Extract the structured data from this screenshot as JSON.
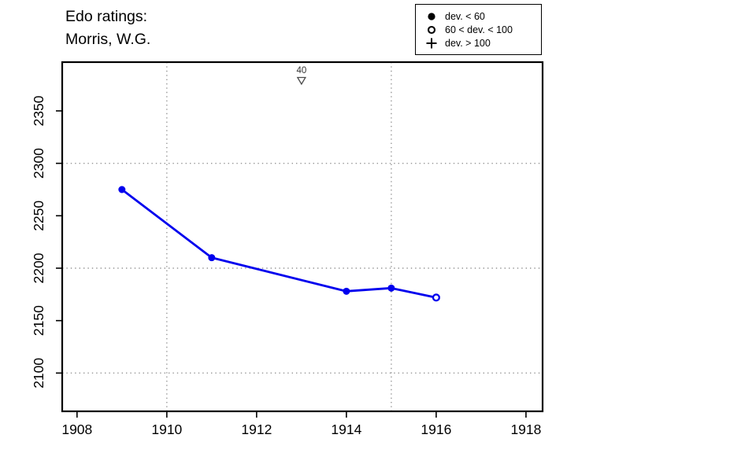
{
  "title": {
    "line1": "Edo ratings:",
    "line2": "Morris, W.G."
  },
  "legend": {
    "items": [
      {
        "marker": "filled-circle",
        "label": "dev. < 60"
      },
      {
        "marker": "open-circle",
        "label": "60 < dev. < 100"
      },
      {
        "marker": "plus",
        "label": "dev. > 100"
      }
    ]
  },
  "colors": {
    "series": "#0000ee",
    "grid": "#969696",
    "axis": "#000000",
    "annotation": "#4a4a4a"
  },
  "chart_data": {
    "type": "line",
    "title": "Edo ratings: Morris, W.G.",
    "xlabel": "",
    "ylabel": "",
    "xlim": [
      1907.67,
      1918.37
    ],
    "ylim": [
      2063.5,
      2396.5
    ],
    "x_ticks": [
      1908,
      1910,
      1912,
      1914,
      1916,
      1918
    ],
    "y_ticks": [
      2100,
      2150,
      2200,
      2250,
      2300,
      2350
    ],
    "grid_x": [
      1910,
      1915
    ],
    "grid_y": [
      2100,
      2200,
      2300
    ],
    "grid_style": "dotted",
    "legend_position": "top-right-outside",
    "series": [
      {
        "name": "Edo rating",
        "points": [
          {
            "x": 1909,
            "y": 2275,
            "marker": "filled-circle"
          },
          {
            "x": 1911,
            "y": 2210,
            "marker": "filled-circle"
          },
          {
            "x": 1914,
            "y": 2178,
            "marker": "filled-circle"
          },
          {
            "x": 1915,
            "y": 2181,
            "marker": "filled-circle"
          },
          {
            "x": 1916,
            "y": 2172,
            "marker": "open-circle"
          }
        ]
      }
    ],
    "annotations": [
      {
        "x": 1913,
        "label": "40",
        "marker": "triangle-down-open"
      }
    ]
  }
}
